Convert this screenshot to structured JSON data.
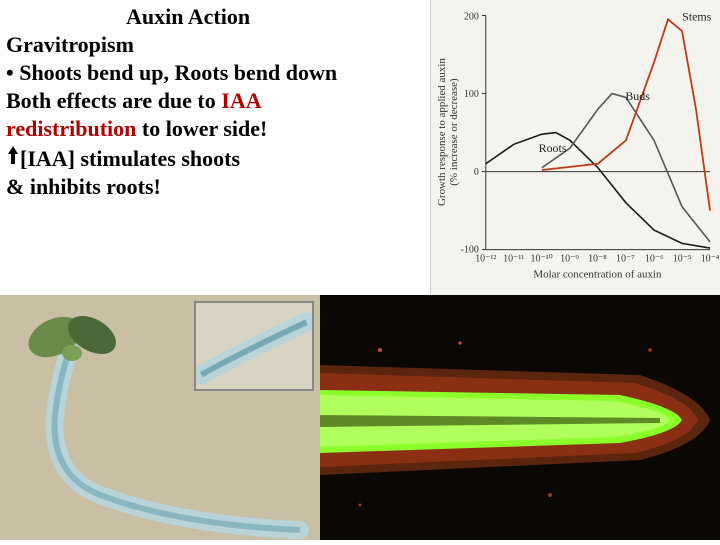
{
  "text": {
    "title": "Auxin Action",
    "subtitle": "Gravitropism",
    "bullet": "• Shoots bend up, Roots bend down",
    "line1a": "Both effects are due to ",
    "line1b": "IAA",
    "line2a": "redistribution",
    "line2b": " to lower side!",
    "line3": "[IAA] stimulates shoots",
    "line4": "& inhibits roots!"
  },
  "chart": {
    "background_color": "#f5f3ee",
    "axis_color": "#333333",
    "grid_color": "#cccccc",
    "ylabel_top": "Growth response to applied auxin",
    "ylabel_sub": "(% increase or decrease)",
    "xlabel": "Molar concentration of auxin",
    "ylim": [
      -100,
      200
    ],
    "yticks": [
      -100,
      0,
      100,
      200
    ],
    "xticks": [
      "10⁻¹²",
      "10⁻¹¹",
      "10⁻¹⁰",
      "10⁻⁹",
      "10⁻⁸",
      "10⁻⁷",
      "10⁻⁶",
      "10⁻⁵",
      "10⁻⁴"
    ],
    "series": {
      "roots": {
        "label": "Roots",
        "color": "#1a1a1a",
        "points": [
          [
            -12,
            10
          ],
          [
            -11,
            35
          ],
          [
            -10,
            48
          ],
          [
            -9.5,
            50
          ],
          [
            -9,
            40
          ],
          [
            -8,
            5
          ],
          [
            -7,
            -40
          ],
          [
            -6,
            -75
          ],
          [
            -5,
            -92
          ],
          [
            -4,
            -98
          ]
        ]
      },
      "buds": {
        "label": "Buds",
        "color": "#555555",
        "points": [
          [
            -10,
            5
          ],
          [
            -9,
            30
          ],
          [
            -8,
            80
          ],
          [
            -7.5,
            100
          ],
          [
            -7,
            95
          ],
          [
            -6,
            40
          ],
          [
            -5,
            -45
          ],
          [
            -4,
            -90
          ]
        ]
      },
      "stems": {
        "label": "Stems",
        "color": "#c03a1a",
        "points": [
          [
            -10,
            2
          ],
          [
            -8,
            10
          ],
          [
            -7,
            40
          ],
          [
            -6,
            140
          ],
          [
            -5.5,
            195
          ],
          [
            -5,
            180
          ],
          [
            -4.5,
            80
          ],
          [
            -4,
            -50
          ]
        ]
      }
    }
  },
  "photos": {
    "left_bg": "#c9bfa5",
    "seedling_stem": "#b8d4d8",
    "seedling_leaf": "#6a8a4a",
    "seedling_dark": "#4a6838",
    "inset_bg": "#d8d2c0",
    "right_bg": "#0a0704",
    "root_fluor_green": "#8aff2a",
    "root_fluor_dark": "#3a5a10",
    "root_edge": "#6a2a10",
    "root_red": "#b03818"
  }
}
